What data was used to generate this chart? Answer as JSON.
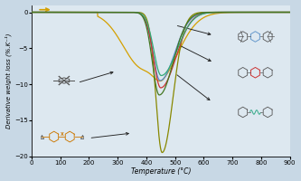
{
  "xlabel": "Temperature (°C)",
  "ylabel": "Derivative weight loss (%.K⁻¹)",
  "xlim": [
    0,
    900
  ],
  "ylim": [
    -20,
    1
  ],
  "background_color": "#c8d8e5",
  "plot_bg_color": "#dde8f0",
  "xticks": [
    0,
    100,
    200,
    300,
    400,
    500,
    600,
    700,
    800,
    900
  ],
  "yticks": [
    0,
    -5,
    -10,
    -15,
    -20
  ],
  "curve_yellow": {
    "color": "#d4a000",
    "peak_x": 415,
    "peak_y": -7.8,
    "sl": 55,
    "sr": 100,
    "onset": 250
  },
  "curve_olive": {
    "color": "#888800",
    "peak_x": 455,
    "peak_y": -19.5,
    "sl": 22,
    "sr": 38,
    "onset": 320
  },
  "curve_blue": {
    "color": "#5588cc",
    "peak_x": 448,
    "peak_y": -9.5,
    "sl": 25,
    "sr": 50,
    "onset": 320
  },
  "curve_red": {
    "color": "#cc3333",
    "peak_x": 450,
    "peak_y": -10.5,
    "sl": 25,
    "sr": 52,
    "onset": 320
  },
  "curve_teal": {
    "color": "#33aa77",
    "peak_x": 452,
    "peak_y": -8.8,
    "sl": 26,
    "sr": 54,
    "onset": 320
  },
  "curve_darkgreen": {
    "color": "#447722",
    "peak_x": 445,
    "peak_y": -11.5,
    "sl": 24,
    "sr": 48,
    "onset": 320
  }
}
